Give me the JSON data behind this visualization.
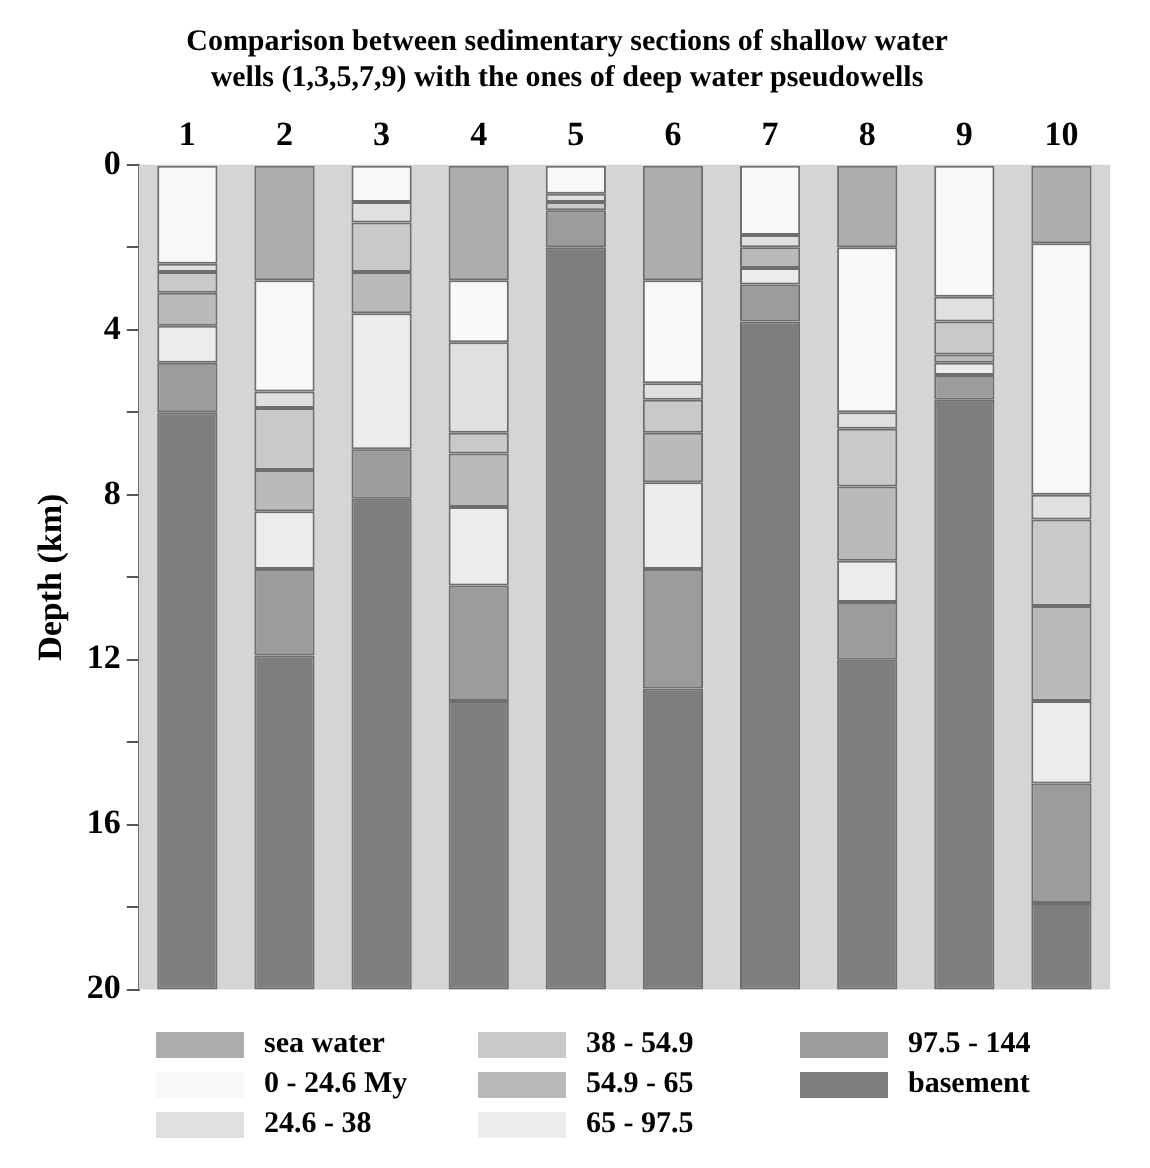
{
  "chart_data": {
    "type": "bar",
    "title": "Comparison between sedimentary sections of shallow water wells (1,3,5,7,9) with the ones of deep water pseudowells",
    "ylabel": "Depth (km)",
    "stacked": true,
    "categories": [
      "1",
      "2",
      "3",
      "4",
      "5",
      "6",
      "7",
      "8",
      "9",
      "10"
    ],
    "ylim": [
      20,
      0
    ],
    "yticks": [
      0,
      {
        "value": 2,
        "label": null
      },
      4,
      {
        "value": 6,
        "label": null
      },
      8,
      {
        "value": 10,
        "label": null
      },
      12,
      {
        "value": 14,
        "label": null
      },
      16,
      {
        "value": 18,
        "label": null
      },
      20
    ],
    "grid": false,
    "legend": "bottom",
    "series": [
      {
        "name": "sea water",
        "color": "#adadad",
        "values": [
          0,
          2.8,
          0,
          2.8,
          0,
          2.8,
          0,
          2.0,
          0,
          1.9
        ]
      },
      {
        "name": "0 - 24.6 My",
        "color": "#f8f8f8",
        "values": [
          2.4,
          2.7,
          0.9,
          1.5,
          0.7,
          2.5,
          1.7,
          4.0,
          3.2,
          6.1
        ]
      },
      {
        "name": "24.6 - 38",
        "color": "#e0e0e0",
        "values": [
          0.2,
          0.4,
          0.5,
          2.2,
          0.2,
          0.4,
          0.3,
          0.4,
          0.6,
          0.6
        ]
      },
      {
        "name": "38 - 54.9",
        "color": "#c9c9c9",
        "values": [
          0.5,
          1.5,
          1.2,
          0.5,
          0.2,
          0.8,
          0,
          1.4,
          0.8,
          2.1
        ]
      },
      {
        "name": "54.9 - 65",
        "color": "#bababa",
        "values": [
          0.8,
          1.0,
          1.0,
          1.3,
          0,
          1.2,
          0.5,
          1.8,
          0.2,
          2.3
        ]
      },
      {
        "name": "65 - 97.5",
        "color": "#ececec",
        "values": [
          0.9,
          1.4,
          3.3,
          1.9,
          0,
          2.1,
          0.4,
          1.0,
          0.3,
          2.0
        ]
      },
      {
        "name": "97.5 - 144",
        "color": "#9c9c9c",
        "values": [
          1.2,
          2.1,
          1.2,
          2.8,
          0.9,
          2.9,
          0.9,
          1.4,
          0.6,
          2.9
        ]
      },
      {
        "name": "basement",
        "color": "#7e7e7e",
        "values": [
          14,
          8.1,
          11.9,
          7.0,
          18,
          7.3,
          16.2,
          8.0,
          14.3,
          2.1
        ]
      }
    ]
  }
}
